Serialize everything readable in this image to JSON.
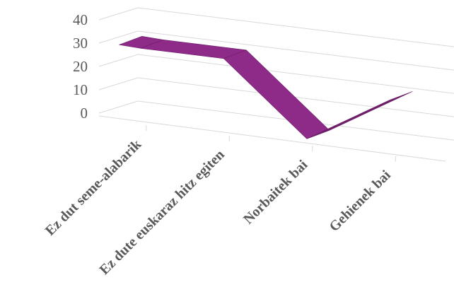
{
  "chart_data": {
    "type": "line",
    "style": "3d-ribbon",
    "categories": [
      "Ez dut seme-alabarik",
      "Ez dute euskaraz hitz egiten",
      "Norbaitek bai",
      "Gehienek bai"
    ],
    "series": [
      {
        "values": [
          30,
          30,
          0,
          21
        ],
        "color": "#8E2A88"
      }
    ],
    "ylim": [
      0,
      40
    ],
    "yticks": [
      "0",
      "10",
      "20",
      "30",
      "40"
    ],
    "grid": true,
    "legend": "none",
    "colors": {
      "ribbon_top": "#8E2A88",
      "ribbon_side": "#6D1F69",
      "grid": "#D9D9D9",
      "axis_text": "#595959"
    }
  }
}
